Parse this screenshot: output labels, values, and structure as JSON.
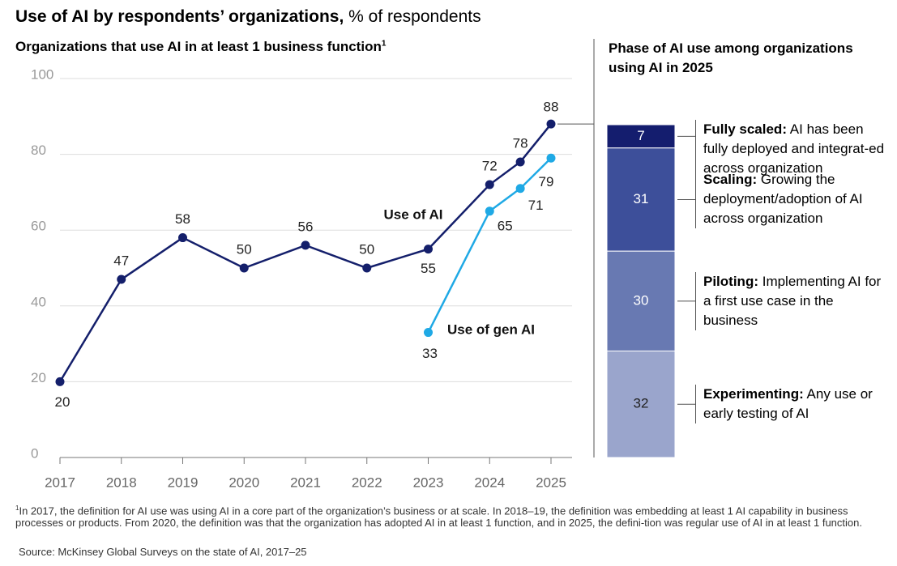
{
  "header": {
    "title": "Use of AI by respondents’ organizations,",
    "unit": "% of respondents"
  },
  "chart_data": [
    {
      "type": "line",
      "title": "Organizations that use AI in at least 1 business function",
      "title_marker": "1",
      "x": [
        2017,
        2018,
        2019,
        2020,
        2021,
        2022,
        2023,
        2024,
        2024.5,
        2025
      ],
      "xlim": [
        2017,
        2025
      ],
      "xticks": [
        2017,
        2018,
        2019,
        2020,
        2021,
        2022,
        2023,
        2024,
        2025
      ],
      "ylim": [
        0,
        100
      ],
      "yticks": [
        0,
        20,
        40,
        60,
        80,
        100
      ],
      "grid": true,
      "series": [
        {
          "name": "Use of AI",
          "color": "#141f6b",
          "values": [
            20,
            47,
            58,
            50,
            56,
            50,
            55,
            72,
            78,
            88
          ]
        },
        {
          "name": "Use of gen AI",
          "color": "#1fa9e5",
          "values": [
            null,
            null,
            null,
            null,
            null,
            null,
            33,
            65,
            71,
            79
          ]
        }
      ]
    },
    {
      "type": "stacked_bar",
      "title": "Phase of AI use among organizations using AI in 2025",
      "series": [
        {
          "name": "Fully scaled:",
          "description": "AI has been fully deployed and integrat-ed across organization",
          "color": "#141d6e",
          "value": 7
        },
        {
          "name": "Scaling:",
          "description": "Growing the deployment/adoption of AI across organization",
          "color": "#3d4f9a",
          "value": 31
        },
        {
          "name": "Piloting:",
          "description": "Implementing AI for a first use case in the business",
          "color": "#6879b2",
          "value": 30
        },
        {
          "name": "Experimenting:",
          "description": "Any use or early testing of AI",
          "color": "#9aa5cc",
          "value": 32
        }
      ]
    }
  ],
  "footnote": {
    "marker": "1",
    "text": "In 2017, the definition for AI use was using AI in a core part of the organization’s business or at scale. In 2018–19, the definition was embedding at least 1 AI capability in business processes or products. From 2020, the definition was that the organization has adopted AI in at least 1 function, and in 2025, the defini-tion was regular use of AI in at least 1 function."
  },
  "source": "Source: McKinsey Global Surveys on the state of AI, 2017–25"
}
